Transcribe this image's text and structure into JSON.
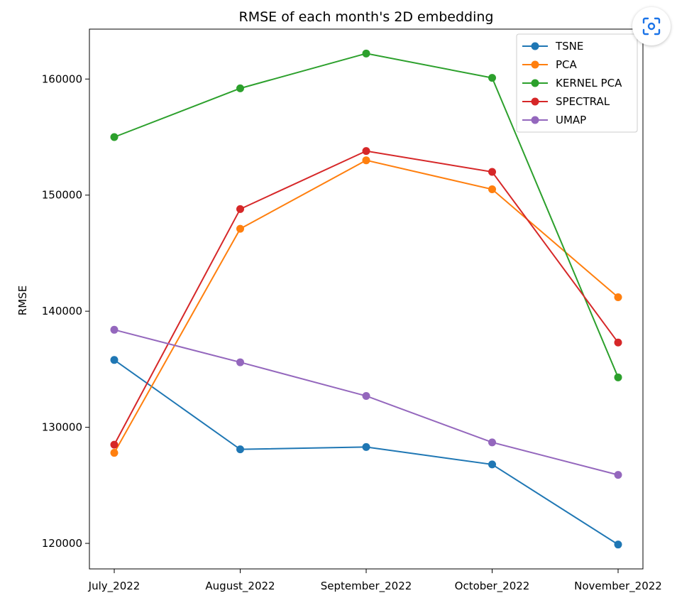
{
  "chart_data": {
    "type": "line",
    "title": "RMSE of each month's 2D embedding",
    "xlabel": "",
    "ylabel": "RMSE",
    "categories": [
      "July_2022",
      "August_2022",
      "September_2022",
      "October_2022",
      "November_2022"
    ],
    "y_ticks": [
      "120000",
      "130000",
      "140000",
      "150000",
      "160000"
    ],
    "ylim": [
      117800,
      164300
    ],
    "grid": false,
    "legend_position": "top-right",
    "series": [
      {
        "name": "TSNE",
        "color": "#1f77b4",
        "values": [
          135800,
          128100,
          128300,
          126800,
          119900
        ]
      },
      {
        "name": "PCA",
        "color": "#ff7f0e",
        "values": [
          127800,
          147100,
          153000,
          150500,
          141200
        ]
      },
      {
        "name": "KERNEL PCA",
        "color": "#2ca02c",
        "values": [
          155000,
          159200,
          162200,
          160100,
          134300
        ]
      },
      {
        "name": "SPECTRAL",
        "color": "#d62728",
        "values": [
          128500,
          148800,
          153800,
          152000,
          137300
        ]
      },
      {
        "name": "UMAP",
        "color": "#9467bd",
        "values": [
          138400,
          135600,
          132700,
          128700,
          125900
        ]
      }
    ]
  },
  "lens_button": {
    "icon": "lens-icon"
  }
}
